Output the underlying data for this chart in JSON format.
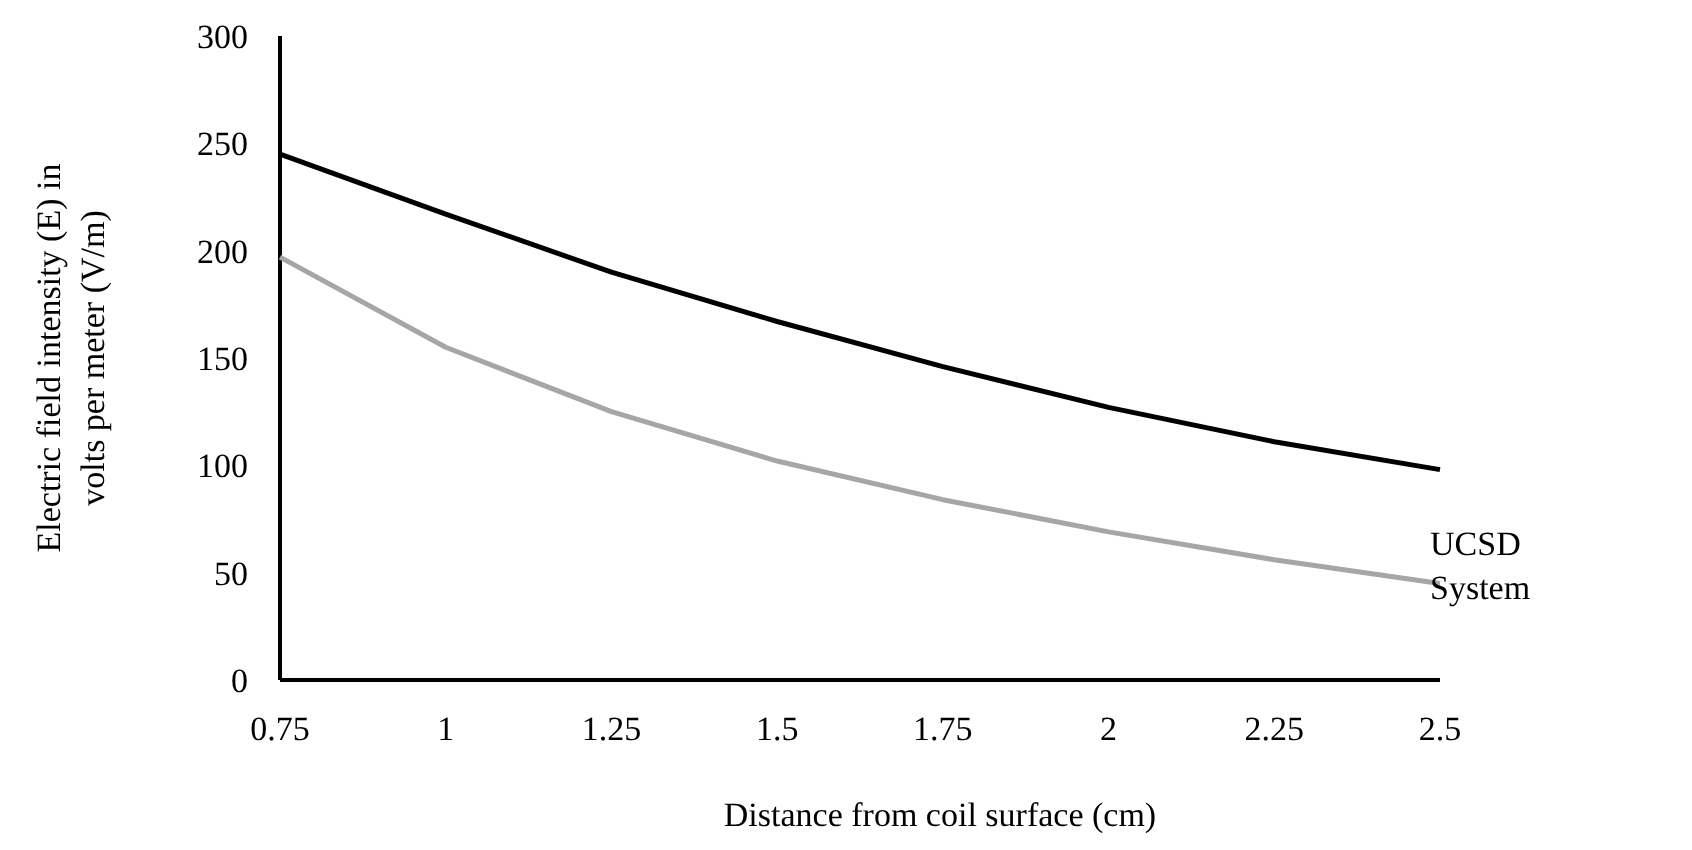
{
  "chart_data": {
    "type": "line",
    "xlabel": "Distance from coil surface (cm)",
    "ylabel": "Electric field intensity (E) in volts per meter (V/m)",
    "x": [
      0.75,
      1,
      1.25,
      1.5,
      1.75,
      2,
      2.25,
      2.5
    ],
    "series": [
      {
        "color": "#000000",
        "values": [
          245,
          217,
          190,
          167,
          146,
          127,
          111,
          98
        ]
      },
      {
        "name": "UCSD System",
        "color": "#a6a6a6",
        "values": [
          197,
          155,
          125,
          102,
          84,
          69,
          56,
          45
        ]
      }
    ],
    "xlim": [
      0.75,
      2.5
    ],
    "xticks": [
      0.75,
      1,
      1.25,
      1.5,
      1.75,
      2,
      2.25,
      2.5
    ],
    "ylim": [
      0,
      300
    ],
    "yticks": [
      0,
      50,
      100,
      150,
      200,
      250,
      300
    ],
    "grid": false,
    "marker": "none",
    "line_style": "solid"
  }
}
